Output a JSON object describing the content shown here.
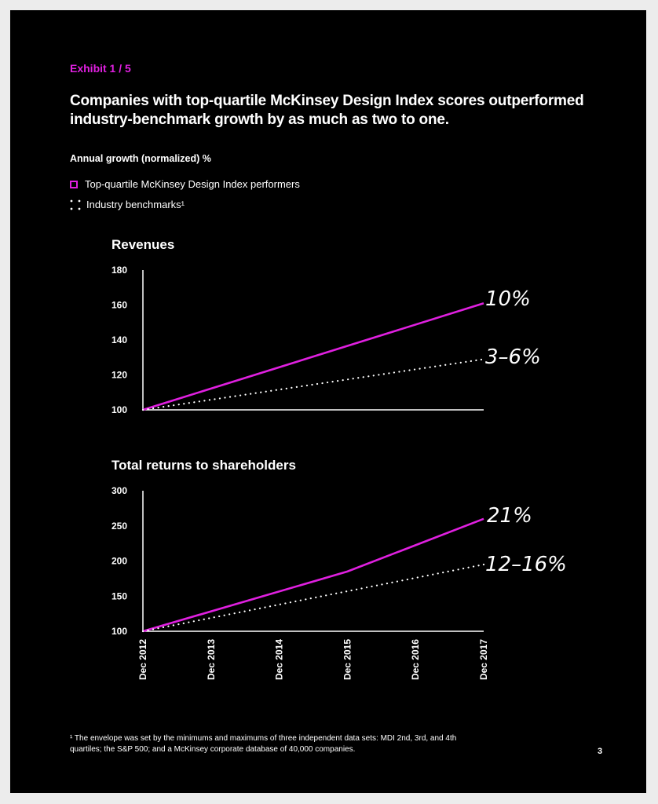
{
  "exhibit": "Exhibit 1 / 5",
  "headline": "Companies with top-quartile McKinsey Design Index scores outperformed industry-benchmark growth by as much as two to one.",
  "ylabel": "Annual growth (normalized) %",
  "legend": {
    "series1": "Top-quartile McKinsey Design Index performers",
    "series2": "Industry benchmarks¹"
  },
  "colors": {
    "accent": "#e020e0",
    "benchmark": "#ffffff",
    "background": "#000000"
  },
  "chart_data": [
    {
      "type": "line",
      "title": "Revenues",
      "x": [
        2012,
        2017
      ],
      "ylim": [
        100,
        180
      ],
      "yticks": [
        100,
        120,
        140,
        160,
        180
      ],
      "grid": false,
      "series": [
        {
          "name": "Top-quartile McKinsey Design Index performers",
          "x": [
            2012,
            2017
          ],
          "values": [
            100,
            161
          ],
          "style": "solid"
        },
        {
          "name": "Industry benchmarks¹",
          "x": [
            2012,
            2017
          ],
          "values": [
            100,
            129
          ],
          "style": "dotted"
        }
      ],
      "annotations": [
        "10%",
        "3–6%"
      ]
    },
    {
      "type": "line",
      "title": "Total returns to shareholders",
      "x": [
        2012,
        2013,
        2014,
        2015,
        2016,
        2017
      ],
      "xticklabels": [
        "Dec 2012",
        "Dec 2013",
        "Dec 2014",
        "Dec 2015",
        "Dec 2016",
        "Dec 2017"
      ],
      "ylim": [
        100,
        300
      ],
      "yticks": [
        100,
        150,
        200,
        250,
        300
      ],
      "grid": false,
      "series": [
        {
          "name": "Top-quartile McKinsey Design Index performers",
          "x": [
            2012,
            2015,
            2017
          ],
          "values": [
            100,
            185,
            260
          ],
          "style": "solid"
        },
        {
          "name": "Industry benchmarks¹",
          "x": [
            2012,
            2017
          ],
          "values": [
            100,
            195
          ],
          "style": "dotted"
        }
      ],
      "annotations": [
        "21%",
        "12–16%"
      ]
    }
  ],
  "footnote": "¹ The envelope was set by the minimums and maximums of three independent data sets: MDI 2nd, 3rd, and 4th quartiles; the S&P 500; and a McKinsey corporate database of 40,000 companies.",
  "page_number": "3"
}
